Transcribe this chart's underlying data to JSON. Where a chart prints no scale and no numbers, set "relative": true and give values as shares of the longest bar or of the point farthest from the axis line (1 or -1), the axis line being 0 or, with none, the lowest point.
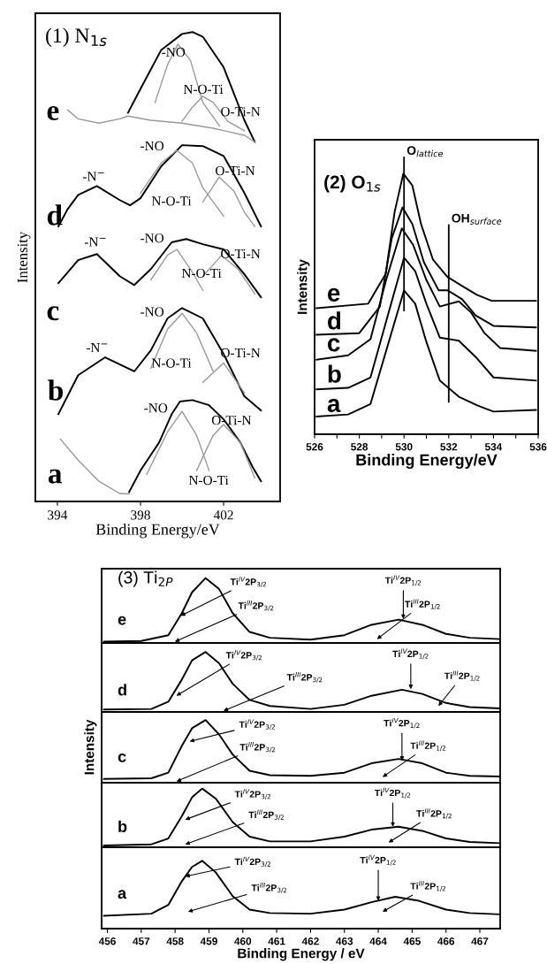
{
  "chart_data": [
    {
      "type": "line",
      "relative": true,
      "title": "(1) N$_{1s}$",
      "xlabel": "Binding Energy/eV",
      "ylabel": "Intensity",
      "xlim": [
        392.94,
        404.72
      ],
      "xticks": [
        394,
        398,
        402
      ],
      "series": [
        {
          "color": "#000000",
          "x": [
            397.4,
            398,
            399,
            400,
            400.5,
            401,
            402,
            403,
            403.5
          ],
          "values": [
            0.828,
            0.879,
            0.962,
            0.996,
            1.0,
            0.99,
            0.925,
            0.812,
            0.766
          ]
        },
        {
          "color": "#999999",
          "x": [
            394.5,
            395,
            396,
            397,
            397.4,
            398.5,
            400,
            401.5,
            403,
            403.5
          ],
          "values": [
            0.834,
            0.815,
            0.806,
            0.815,
            0.821,
            0.812,
            0.806,
            0.795,
            0.78,
            0.766
          ]
        },
        {
          "color": "#999999",
          "x": [
            398.7,
            399.3,
            399.8,
            400.4,
            401,
            401.8
          ],
          "values": [
            0.85,
            0.93,
            0.974,
            0.94,
            0.85,
            0.8
          ]
        },
        {
          "color": "#999999",
          "x": [
            400,
            400.5,
            401,
            401.5,
            402.2,
            403
          ],
          "values": [
            0.81,
            0.84,
            0.863,
            0.85,
            0.81,
            0.79
          ]
        },
        {
          "color": "#000000",
          "x": [
            394.05,
            394.5,
            395,
            395.9,
            397,
            397.5,
            398,
            399,
            400,
            401,
            402,
            403,
            403.8
          ],
          "values": [
            0.586,
            0.623,
            0.653,
            0.672,
            0.642,
            0.631,
            0.646,
            0.714,
            0.759,
            0.757,
            0.736,
            0.657,
            0.586
          ]
        },
        {
          "color": "#999999",
          "x": [
            398,
            399,
            399.75,
            400.5,
            401,
            402
          ],
          "values": [
            0.657,
            0.721,
            0.748,
            0.721,
            0.668,
            0.608
          ]
        },
        {
          "color": "#999999",
          "x": [
            401,
            401.79,
            402.5,
            403,
            403.5
          ],
          "values": [
            0.638,
            0.691,
            0.661,
            0.616,
            0.586
          ]
        },
        {
          "color": "#000000",
          "x": [
            394.05,
            394.5,
            395,
            395.9,
            397,
            397.7,
            398.5,
            399.5,
            400.2,
            401,
            402,
            403,
            403.8
          ],
          "values": [
            0.465,
            0.488,
            0.514,
            0.527,
            0.48,
            0.461,
            0.495,
            0.552,
            0.559,
            0.548,
            0.537,
            0.484,
            0.435
          ]
        },
        {
          "color": "#999999",
          "x": [
            398.5,
            399.3,
            399.75,
            400.5,
            401
          ],
          "values": [
            0.472,
            0.525,
            0.537,
            0.488,
            0.45
          ]
        },
        {
          "color": "#999999",
          "x": [
            401,
            401.9,
            402.7,
            403.5
          ],
          "values": [
            0.48,
            0.524,
            0.495,
            0.442
          ]
        },
        {
          "color": "#000000",
          "x": [
            394.05,
            395,
            396.3,
            397.7,
            398.5,
            399.3,
            400,
            401,
            402,
            403,
            403.8
          ],
          "values": [
            0.186,
            0.269,
            0.307,
            0.277,
            0.322,
            0.39,
            0.412,
            0.39,
            0.314,
            0.224,
            0.194
          ]
        },
        {
          "color": "#999999",
          "x": [
            398.5,
            399.3,
            400,
            400.7,
            401.5
          ],
          "values": [
            0.284,
            0.367,
            0.401,
            0.359,
            0.277
          ]
        },
        {
          "color": "#999999",
          "x": [
            401,
            402,
            403
          ],
          "values": [
            0.254,
            0.295,
            0.231
          ]
        },
        {
          "color": "#000000",
          "x": [
            397.45,
            398,
            398.9,
            399.5,
            399.9,
            400.5,
            401.3,
            402,
            402.8,
            403.4,
            403.8
          ],
          "values": [
            0.02,
            0.066,
            0.126,
            0.186,
            0.213,
            0.216,
            0.205,
            0.175,
            0.126,
            0.073,
            0.043
          ]
        },
        {
          "color": "#999999",
          "x": [
            398.3,
            399.3,
            400,
            400.7,
            401.3
          ],
          "values": [
            0.058,
            0.148,
            0.192,
            0.141,
            0.066
          ]
        },
        {
          "color": "#999999",
          "x": [
            400.7,
            401.5,
            402,
            402.8,
            403.5
          ],
          "values": [
            0.066,
            0.141,
            0.164,
            0.126,
            0.05
          ]
        },
        {
          "color": "#999999",
          "x": [
            394.14,
            395,
            396,
            397,
            397.45
          ],
          "values": [
            0.133,
            0.088,
            0.043,
            0.017,
            0.016
          ]
        }
      ],
      "annotations": [
        "e",
        "d",
        "c",
        "b",
        "a",
        "-NO",
        "N-O-Ti",
        "O-Ti-N",
        "-N$^{−}$",
        "-NO",
        "O-Ti-N",
        "N-O-Ti",
        "-N$^{−}$",
        "-NO",
        "O-Ti-N",
        "N-O-Ti",
        "-N$^{−}$",
        "-NO",
        "N-O-Ti",
        "O-Ti-N",
        "-NO",
        "O-Ti-N",
        "N-O-Ti"
      ]
    },
    {
      "type": "line",
      "relative": true,
      "title": "(2) O$_{1s}$",
      "xlabel": "Binding Energy/eV",
      "ylabel": "Intensity",
      "xlim": [
        526,
        536
      ],
      "xticks": [
        526,
        {
          "value": 527,
          "label": null
        },
        528,
        {
          "value": 529,
          "label": null
        },
        530,
        {
          "value": 531,
          "label": null
        },
        532,
        {
          "value": 533,
          "label": null
        },
        534,
        {
          "value": 535,
          "label": null
        },
        536
      ],
      "ref_lines": [
        {
          "axis": "x",
          "value": 530,
          "label": "O$_{lattice}$",
          "color": "#000000"
        },
        {
          "axis": "x",
          "value": 532,
          "label": "OH$_{surface}$",
          "color": "#000000"
        }
      ],
      "series": [
        {
          "color": "#000000",
          "x": [
            526.09,
            528.4,
            529.18,
            529.58,
            529.97,
            530.37,
            530.76,
            531.29,
            531.95,
            532.6,
            533.26,
            533.92,
            535.9
          ],
          "values": [
            0.484,
            0.501,
            0.615,
            0.853,
            1.0,
            0.955,
            0.807,
            0.671,
            0.603,
            0.569,
            0.535,
            0.512,
            0.512
          ]
        },
        {
          "color": "#000000",
          "x": [
            526.09,
            528,
            528.92,
            529.45,
            529.93,
            530.37,
            530.89,
            531.55,
            531.95,
            532.6,
            533.2,
            534,
            535.9
          ],
          "values": [
            0.382,
            0.388,
            0.49,
            0.751,
            0.87,
            0.807,
            0.66,
            0.552,
            0.552,
            0.518,
            0.456,
            0.416,
            0.41
          ]
        },
        {
          "color": "#000000",
          "x": [
            526.09,
            527.5,
            528.5,
            529.2,
            529.9,
            530.4,
            531,
            531.6,
            532.45,
            533,
            533.6,
            534.3,
            535.9
          ],
          "values": [
            0.286,
            0.303,
            0.365,
            0.592,
            0.79,
            0.728,
            0.592,
            0.49,
            0.51,
            0.467,
            0.388,
            0.331,
            0.32
          ]
        },
        {
          "color": "#000000",
          "x": [
            526.09,
            527.5,
            528.5,
            529.2,
            530,
            530.5,
            531,
            531.6,
            532.45,
            533.2,
            534,
            535.9
          ],
          "values": [
            0.172,
            0.178,
            0.218,
            0.433,
            0.677,
            0.626,
            0.501,
            0.371,
            0.359,
            0.297,
            0.218,
            0.206
          ]
        },
        {
          "color": "#000000",
          "x": [
            526.09,
            527.5,
            528.5,
            529.2,
            530,
            530.5,
            531,
            531.6,
            532.45,
            533.3,
            534,
            535.9
          ],
          "values": [
            0.068,
            0.076,
            0.116,
            0.32,
            0.552,
            0.501,
            0.354,
            0.206,
            0.144,
            0.11,
            0.087,
            0.093
          ]
        }
      ],
      "annotations": [
        "e",
        "d",
        "c",
        "b",
        "a"
      ]
    },
    {
      "type": "line",
      "relative": true,
      "title": "(3) Ti$_{2P}$",
      "xlim": [
        455.83,
        467.6
      ],
      "xticks": [
        456,
        457,
        458,
        459,
        460,
        461,
        462,
        463,
        464,
        465,
        466,
        467
      ],
      "tick_labels": false,
      "series": [
        {
          "color": "#000000",
          "x": [
            455.9,
            457,
            457.8,
            458.2,
            458.5,
            458.9,
            459.3,
            459.7,
            460.2,
            460.8,
            462,
            463,
            463.8,
            464.6,
            465.3,
            466,
            466.7,
            467.6
          ],
          "values": [
            0.02,
            0.03,
            0.12,
            0.46,
            0.78,
            1.0,
            0.83,
            0.46,
            0.17,
            0.08,
            0.05,
            0.12,
            0.28,
            0.36,
            0.28,
            0.14,
            0.08,
            0.06
          ]
        }
      ],
      "annotations": [
        "e",
        {
          "text": "Ti$^{IV}$2P$_{3/2}$",
          "x": 458.17,
          "y": 0.42
        },
        "Ti$^{III}$2P$_{3/2}$",
        {
          "text": "Ti$^{IV}$2P$_{1/2}$",
          "x": 464.74,
          "y": 0.37
        },
        "Ti$^{III}$2P$_{1/2}$"
      ]
    },
    {
      "type": "line",
      "relative": true,
      "xlim": [
        455.83,
        467.6
      ],
      "xticks": [
        456,
        457,
        458,
        459,
        460,
        461,
        462,
        463,
        464,
        465,
        466,
        467
      ],
      "tick_labels": false,
      "series": [
        {
          "color": "#000000",
          "x": [
            455.9,
            457.3,
            457.8,
            458.2,
            458.5,
            458.9,
            459.3,
            459.7,
            460.2,
            460.8,
            462,
            463,
            463.8,
            464.7,
            465.3,
            466,
            466.7,
            467.6
          ],
          "values": [
            0.04,
            0.05,
            0.17,
            0.54,
            0.86,
            1.0,
            0.81,
            0.47,
            0.2,
            0.1,
            0.05,
            0.12,
            0.27,
            0.37,
            0.3,
            0.15,
            0.08,
            0.06
          ]
        }
      ],
      "annotations": [
        "d",
        {
          "text": "Ti$^{IV}$2P$_{3/2}$",
          "x": 458.04,
          "y": 0.27
        },
        "Ti$^{III}$2P$_{3/2}$",
        {
          "text": "Ti$^{IV}$2P$_{1/2}$",
          "x": 464.96,
          "y": 0.38
        },
        "Ti$^{III}$2P$_{1/2}$"
      ]
    },
    {
      "type": "line",
      "relative": true,
      "ylabel": "Intensity",
      "xlim": [
        455.83,
        467.6
      ],
      "xticks": [
        456,
        457,
        458,
        459,
        460,
        461,
        462,
        463,
        464,
        465,
        466,
        467
      ],
      "tick_labels": false,
      "series": [
        {
          "color": "#000000",
          "x": [
            455.9,
            457.3,
            457.8,
            458.2,
            458.5,
            458.9,
            459.3,
            459.7,
            460.2,
            460.8,
            462,
            463,
            463.8,
            464.6,
            465.3,
            466,
            466.7,
            467.6
          ],
          "values": [
            0.06,
            0.07,
            0.16,
            0.59,
            0.87,
            1.0,
            0.77,
            0.45,
            0.19,
            0.12,
            0.11,
            0.16,
            0.31,
            0.38,
            0.31,
            0.16,
            0.11,
            0.1
          ]
        }
      ],
      "annotations": [
        "c",
        {
          "text": "Ti$^{IV}$2P$_{3/2}$",
          "x": 458.43,
          "y": 0.66
        },
        "Ti$^{III}$2P$_{3/2}$",
        {
          "text": "Ti$^{IV}$2P$_{1/2}$",
          "x": 464.7,
          "y": 0.35
        },
        "Ti$^{III}$2P$_{1/2}$"
      ]
    },
    {
      "type": "line",
      "relative": true,
      "xlim": [
        455.83,
        467.6
      ],
      "xticks": [
        456,
        457,
        458,
        459,
        460,
        461,
        462,
        463,
        464,
        465,
        466,
        467
      ],
      "tick_labels": false,
      "series": [
        {
          "color": "#000000",
          "x": [
            455.9,
            457.3,
            457.8,
            458.2,
            458.5,
            458.8,
            459.2,
            459.7,
            460.2,
            460.8,
            462,
            463,
            463.8,
            464.6,
            465.3,
            466,
            466.7,
            467.6
          ],
          "values": [
            0.03,
            0.05,
            0.15,
            0.53,
            0.85,
            1.0,
            0.83,
            0.43,
            0.18,
            0.1,
            0.1,
            0.18,
            0.3,
            0.35,
            0.28,
            0.15,
            0.09,
            0.07
          ]
        }
      ],
      "annotations": [
        "b",
        {
          "text": "Ti$^{IV}$2P$_{3/2}$",
          "x": 458.3,
          "y": 0.47
        },
        "Ti$^{III}$2P$_{3/2}$",
        {
          "text": "Ti$^{IV}$2P$_{1/2}$",
          "x": 464.43,
          "y": 0.35
        },
        "Ti$^{III}$2P$_{1/2}$"
      ]
    },
    {
      "type": "line",
      "relative": true,
      "xlabel": "Binding Energy / eV",
      "xlim": [
        455.83,
        467.6
      ],
      "xticks": [
        456,
        457,
        458,
        459,
        460,
        461,
        462,
        463,
        464,
        465,
        466,
        467
      ],
      "series": [
        {
          "color": "#000000",
          "x": [
            455.9,
            457.3,
            457.8,
            458.2,
            458.5,
            458.8,
            459.2,
            459.7,
            460.2,
            460.8,
            462,
            463,
            463.8,
            464.5,
            465.2,
            466,
            466.7,
            467.6
          ],
          "values": [
            0.19,
            0.22,
            0.35,
            0.7,
            0.91,
            1.0,
            0.83,
            0.48,
            0.28,
            0.23,
            0.22,
            0.28,
            0.39,
            0.47,
            0.41,
            0.28,
            0.23,
            0.21
          ]
        }
      ],
      "annotations": [
        "a",
        {
          "text": "Ti$^{IV}$2P$_{3/2}$",
          "x": 458.3,
          "y": 0.77
        },
        "Ti$^{III}$2P$_{3/2}$",
        {
          "text": "Ti$^{IV}$2P$_{1/2}$",
          "x": 464.0,
          "y": 0.41
        },
        "Ti$^{III}$2P$_{1/2}$"
      ]
    }
  ]
}
